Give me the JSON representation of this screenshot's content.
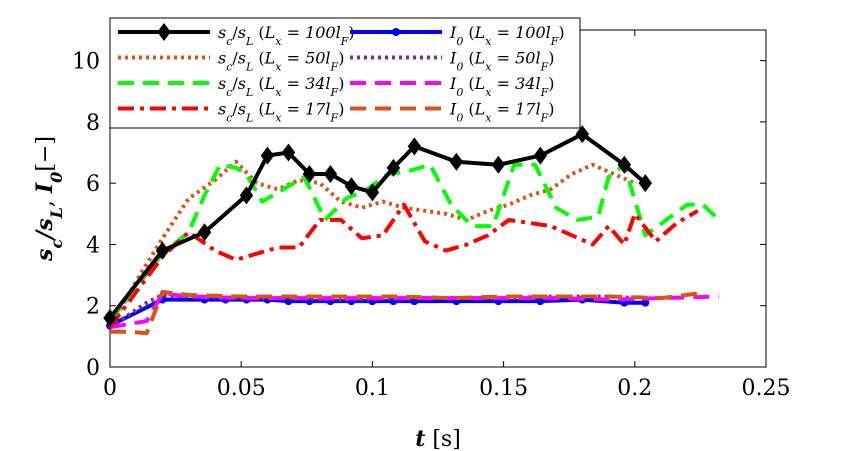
{
  "chart_data": {
    "type": "line",
    "title": "",
    "xlabel": "t [s]",
    "ylabel": "s_c/s_L,  I_0[−]",
    "xlim": [
      0,
      0.25
    ],
    "ylim": [
      0,
      11
    ],
    "xticks": [
      0,
      0.05,
      0.1,
      0.15,
      0.2,
      0.25
    ],
    "xtick_labels": [
      "0",
      "0.05",
      "0.1",
      "0.15",
      "0.2",
      "0.25"
    ],
    "yticks": [
      0,
      2,
      4,
      6,
      8,
      10
    ],
    "ytick_labels": [
      "0",
      "2",
      "4",
      "6",
      "8",
      "10"
    ],
    "legend_position": "top-left",
    "series": [
      {
        "name": "s_c/s_L (L_x = 100l_F)",
        "color": "#000000",
        "style": "solid",
        "marker": "diamond",
        "x": [
          0,
          0.02,
          0.036,
          0.052,
          0.06,
          0.068,
          0.076,
          0.084,
          0.092,
          0.1,
          0.108,
          0.116,
          0.132,
          0.148,
          0.164,
          0.18,
          0.196,
          0.204
        ],
        "y": [
          1.6,
          3.8,
          4.4,
          5.6,
          6.9,
          7.0,
          6.3,
          6.3,
          5.9,
          5.7,
          6.5,
          7.2,
          6.7,
          6.6,
          6.9,
          7.6,
          6.6,
          6.0
        ]
      },
      {
        "name": "s_c/s_L (L_x = 50l_F)",
        "color": "#d95319",
        "style": "dotted",
        "marker": "none",
        "x": [
          0,
          0.01,
          0.02,
          0.03,
          0.04,
          0.048,
          0.056,
          0.064,
          0.072,
          0.08,
          0.088,
          0.096,
          0.104,
          0.112,
          0.12,
          0.128,
          0.136,
          0.144,
          0.152,
          0.16,
          0.168,
          0.176,
          0.184,
          0.192,
          0.2
        ],
        "y": [
          1.3,
          2.8,
          4.2,
          5.5,
          6.1,
          6.7,
          6.0,
          5.8,
          6.1,
          6.0,
          5.4,
          5.2,
          5.4,
          5.2,
          5.1,
          5.0,
          4.8,
          5.1,
          5.3,
          5.6,
          5.8,
          6.3,
          6.6,
          6.3,
          6.0
        ]
      },
      {
        "name": "s_c/s_L (L_x = 34l_F)",
        "color": "#00ff00",
        "style": "dashed",
        "marker": "none",
        "x": [
          0,
          0.02,
          0.03,
          0.036,
          0.042,
          0.048,
          0.052,
          0.058,
          0.066,
          0.074,
          0.082,
          0.09,
          0.098,
          0.106,
          0.114,
          0.122,
          0.13,
          0.138,
          0.146,
          0.154,
          0.162,
          0.17,
          0.178,
          0.186,
          0.19,
          0.196,
          0.204,
          0.212,
          0.22,
          0.226,
          0.232
        ],
        "y": [
          1.5,
          3.7,
          4.4,
          5.6,
          6.6,
          6.5,
          6.3,
          5.4,
          5.8,
          6.2,
          4.8,
          5.5,
          5.8,
          6.3,
          6.4,
          6.6,
          5.3,
          4.6,
          4.6,
          6.6,
          6.6,
          5.2,
          4.8,
          4.9,
          6.2,
          6.6,
          4.3,
          4.8,
          5.3,
          5.3,
          4.8
        ]
      },
      {
        "name": "s_c/s_L (L_x = 17l_F)",
        "color": "#ff0000",
        "style": "dashdot",
        "marker": "none",
        "x": [
          0,
          0.02,
          0.03,
          0.04,
          0.048,
          0.056,
          0.064,
          0.072,
          0.08,
          0.088,
          0.096,
          0.104,
          0.112,
          0.12,
          0.128,
          0.136,
          0.144,
          0.152,
          0.16,
          0.168,
          0.176,
          0.184,
          0.19,
          0.196,
          0.2,
          0.208,
          0.216,
          0.224
        ],
        "y": [
          1.3,
          3.6,
          4.4,
          3.8,
          3.5,
          3.7,
          3.9,
          3.9,
          4.8,
          4.8,
          4.2,
          4.3,
          5.3,
          4.1,
          3.8,
          4.0,
          4.3,
          4.8,
          4.7,
          4.6,
          4.3,
          4.0,
          4.6,
          4.0,
          5.0,
          4.1,
          4.7,
          5.1
        ]
      },
      {
        "name": "I_0 (L_x = 100l_F)",
        "color": "#0000ff",
        "style": "solid",
        "marker": "circle",
        "x": [
          0,
          0.02,
          0.036,
          0.044,
          0.052,
          0.06,
          0.068,
          0.076,
          0.084,
          0.092,
          0.1,
          0.108,
          0.116,
          0.132,
          0.148,
          0.164,
          0.18,
          0.196,
          0.204
        ],
        "y": [
          1.35,
          2.2,
          2.2,
          2.2,
          2.2,
          2.2,
          2.15,
          2.15,
          2.15,
          2.15,
          2.15,
          2.15,
          2.15,
          2.15,
          2.15,
          2.15,
          2.2,
          2.1,
          2.1
        ]
      },
      {
        "name": "I_0 (L_x = 50l_F)",
        "color": "#7e2f8e",
        "style": "dotted",
        "marker": "none",
        "x": [
          0,
          0.014,
          0.02,
          0.03,
          0.05,
          0.07,
          0.09,
          0.11,
          0.13,
          0.15,
          0.17,
          0.19,
          0.2
        ],
        "y": [
          1.3,
          2.1,
          2.35,
          2.3,
          2.25,
          2.25,
          2.2,
          2.25,
          2.25,
          2.25,
          2.3,
          2.3,
          2.25
        ]
      },
      {
        "name": "I_0 (L_x = 34l_F)",
        "color": "#ff00ff",
        "style": "dashed",
        "marker": "none",
        "x": [
          0,
          0.014,
          0.02,
          0.03,
          0.05,
          0.07,
          0.09,
          0.11,
          0.13,
          0.15,
          0.17,
          0.19,
          0.21,
          0.232
        ],
        "y": [
          1.3,
          1.5,
          2.4,
          2.3,
          2.25,
          2.25,
          2.25,
          2.25,
          2.25,
          2.25,
          2.25,
          2.2,
          2.25,
          2.3
        ]
      },
      {
        "name": "I_0 (L_x = 17l_F)",
        "color": "#d95319",
        "style": "dashed",
        "marker": "none",
        "x": [
          0,
          0.008,
          0.014,
          0.02,
          0.03,
          0.05,
          0.07,
          0.09,
          0.11,
          0.13,
          0.15,
          0.17,
          0.19,
          0.21,
          0.224
        ],
        "y": [
          1.15,
          1.15,
          1.1,
          2.45,
          2.35,
          2.3,
          2.3,
          2.3,
          2.3,
          2.25,
          2.3,
          2.3,
          2.3,
          2.25,
          2.4
        ]
      }
    ]
  },
  "legend": {
    "col1": [
      {
        "base": "s",
        "sub": "c",
        "base2": "s",
        "sub2": "L",
        "lx": "100l",
        "lsub": "F"
      },
      {
        "base": "s",
        "sub": "c",
        "base2": "s",
        "sub2": "L",
        "lx": "50l",
        "lsub": "F"
      },
      {
        "base": "s",
        "sub": "c",
        "base2": "s",
        "sub2": "L",
        "lx": "34l",
        "lsub": "F"
      },
      {
        "base": "s",
        "sub": "c",
        "base2": "s",
        "sub2": "L",
        "lx": "17l",
        "lsub": "F"
      }
    ],
    "col2": [
      {
        "base": "I",
        "sub": "0",
        "lx": "100l",
        "lsub": "F"
      },
      {
        "base": "I",
        "sub": "0",
        "lx": "50l",
        "lsub": "F"
      },
      {
        "base": "I",
        "sub": "0",
        "lx": "34l",
        "lsub": "F"
      },
      {
        "base": "I",
        "sub": "0",
        "lx": "17l",
        "lsub": "F"
      }
    ]
  }
}
